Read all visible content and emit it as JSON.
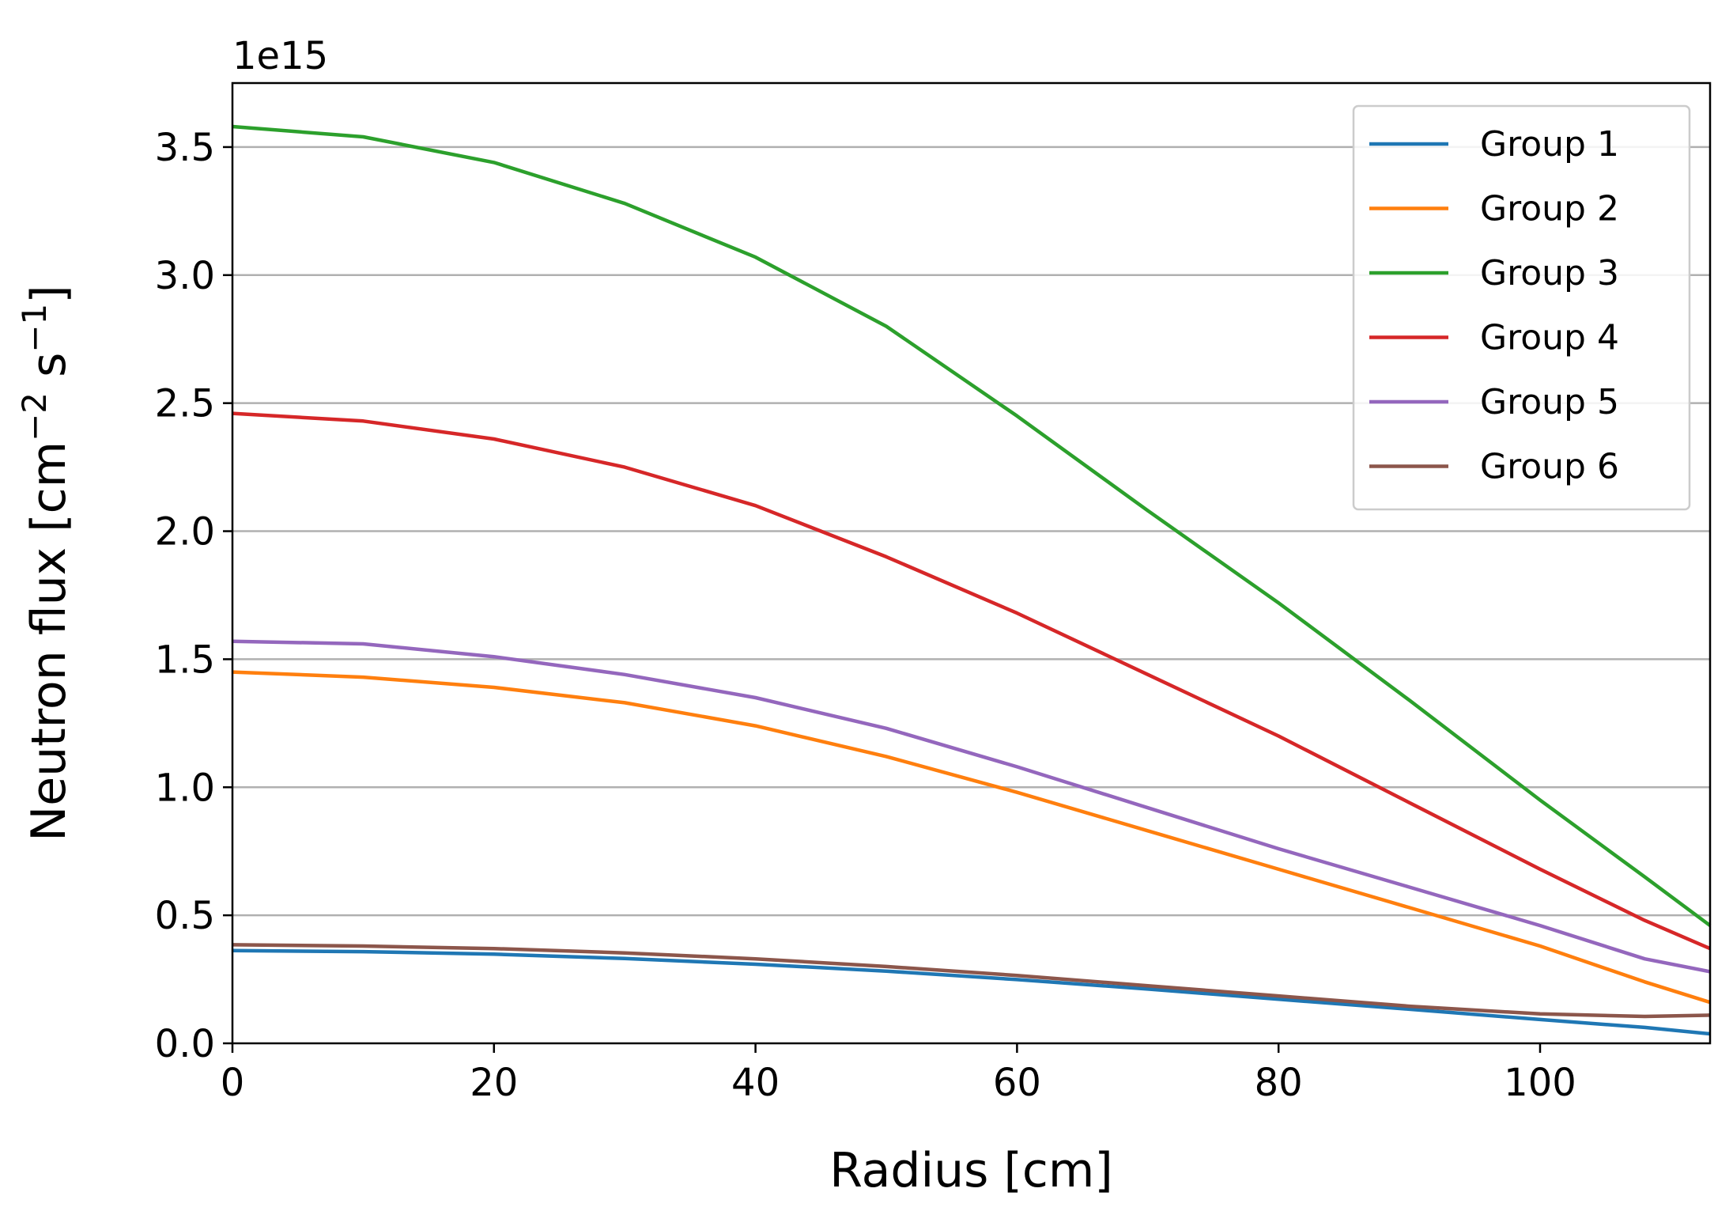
{
  "chart_data": {
    "type": "line",
    "xlabel": "Radius [cm]",
    "ylabel_parts": {
      "base": "Neutron flux [cm",
      "exp1": "−2",
      "mid": " s",
      "exp2": "−1",
      "end": "]"
    },
    "y_offset_text": "1e15",
    "y_scale": 1000000000000000.0,
    "xlim": [
      0,
      113
    ],
    "ylim": [
      0,
      3.75
    ],
    "xticks": [
      0,
      20,
      40,
      60,
      80,
      100
    ],
    "xtick_labels": [
      "0",
      "20",
      "40",
      "60",
      "80",
      "100"
    ],
    "yticks": [
      0,
      0.5,
      1.0,
      1.5,
      2.0,
      2.5,
      3.0,
      3.5
    ],
    "ytick_labels": [
      "0.0",
      "0.5",
      "1.0",
      "1.5",
      "2.0",
      "2.5",
      "3.0",
      "3.5"
    ],
    "grid": "horizontal",
    "legend_position": "top-right",
    "x": [
      0,
      10,
      20,
      30,
      40,
      50,
      60,
      70,
      80,
      90,
      100,
      108,
      113
    ],
    "series": [
      {
        "name": "Group 1",
        "color": "#1f77b4",
        "values": [
          0.362,
          0.358,
          0.348,
          0.331,
          0.309,
          0.282,
          0.249,
          0.212,
          0.172,
          0.133,
          0.093,
          0.062,
          0.037
        ]
      },
      {
        "name": "Group 2",
        "color": "#ff7f0e",
        "values": [
          1.45,
          1.43,
          1.39,
          1.33,
          1.24,
          1.12,
          0.98,
          0.83,
          0.68,
          0.53,
          0.38,
          0.24,
          0.16
        ]
      },
      {
        "name": "Group 3",
        "color": "#2ca02c",
        "values": [
          3.58,
          3.54,
          3.44,
          3.28,
          3.07,
          2.8,
          2.45,
          2.08,
          1.72,
          1.34,
          0.95,
          0.65,
          0.46
        ]
      },
      {
        "name": "Group 4",
        "color": "#d62728",
        "values": [
          2.46,
          2.43,
          2.36,
          2.25,
          2.1,
          1.9,
          1.68,
          1.44,
          1.2,
          0.94,
          0.68,
          0.48,
          0.37
        ]
      },
      {
        "name": "Group 5",
        "color": "#9467bd",
        "values": [
          1.57,
          1.56,
          1.51,
          1.44,
          1.35,
          1.23,
          1.08,
          0.92,
          0.76,
          0.61,
          0.46,
          0.33,
          0.28
        ]
      },
      {
        "name": "Group 6",
        "color": "#8c564b",
        "values": [
          0.385,
          0.38,
          0.37,
          0.353,
          0.33,
          0.3,
          0.265,
          0.225,
          0.185,
          0.145,
          0.115,
          0.105,
          0.11
        ]
      }
    ]
  }
}
